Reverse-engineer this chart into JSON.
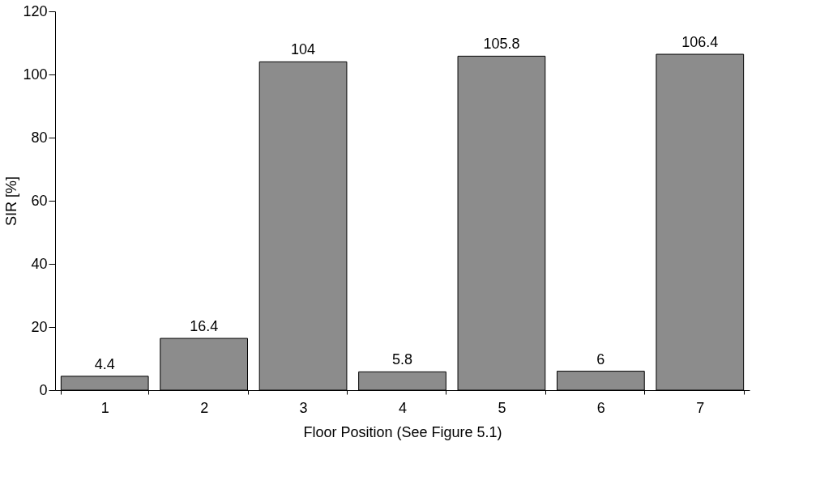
{
  "chart_data": {
    "type": "bar",
    "xlabel": "Floor Position (See Figure 5.1)",
    "ylabel": "SIR [%]",
    "categories": [
      "1",
      "2",
      "3",
      "4",
      "5",
      "6",
      "7"
    ],
    "values": [
      4.4,
      16.4,
      104,
      5.8,
      105.8,
      6,
      106.4
    ],
    "color": "#8c8c8c",
    "ylim": [
      0,
      120
    ],
    "yticks": [
      0,
      20,
      40,
      60,
      80,
      100,
      120
    ],
    "grid": false,
    "data_labels": true
  }
}
